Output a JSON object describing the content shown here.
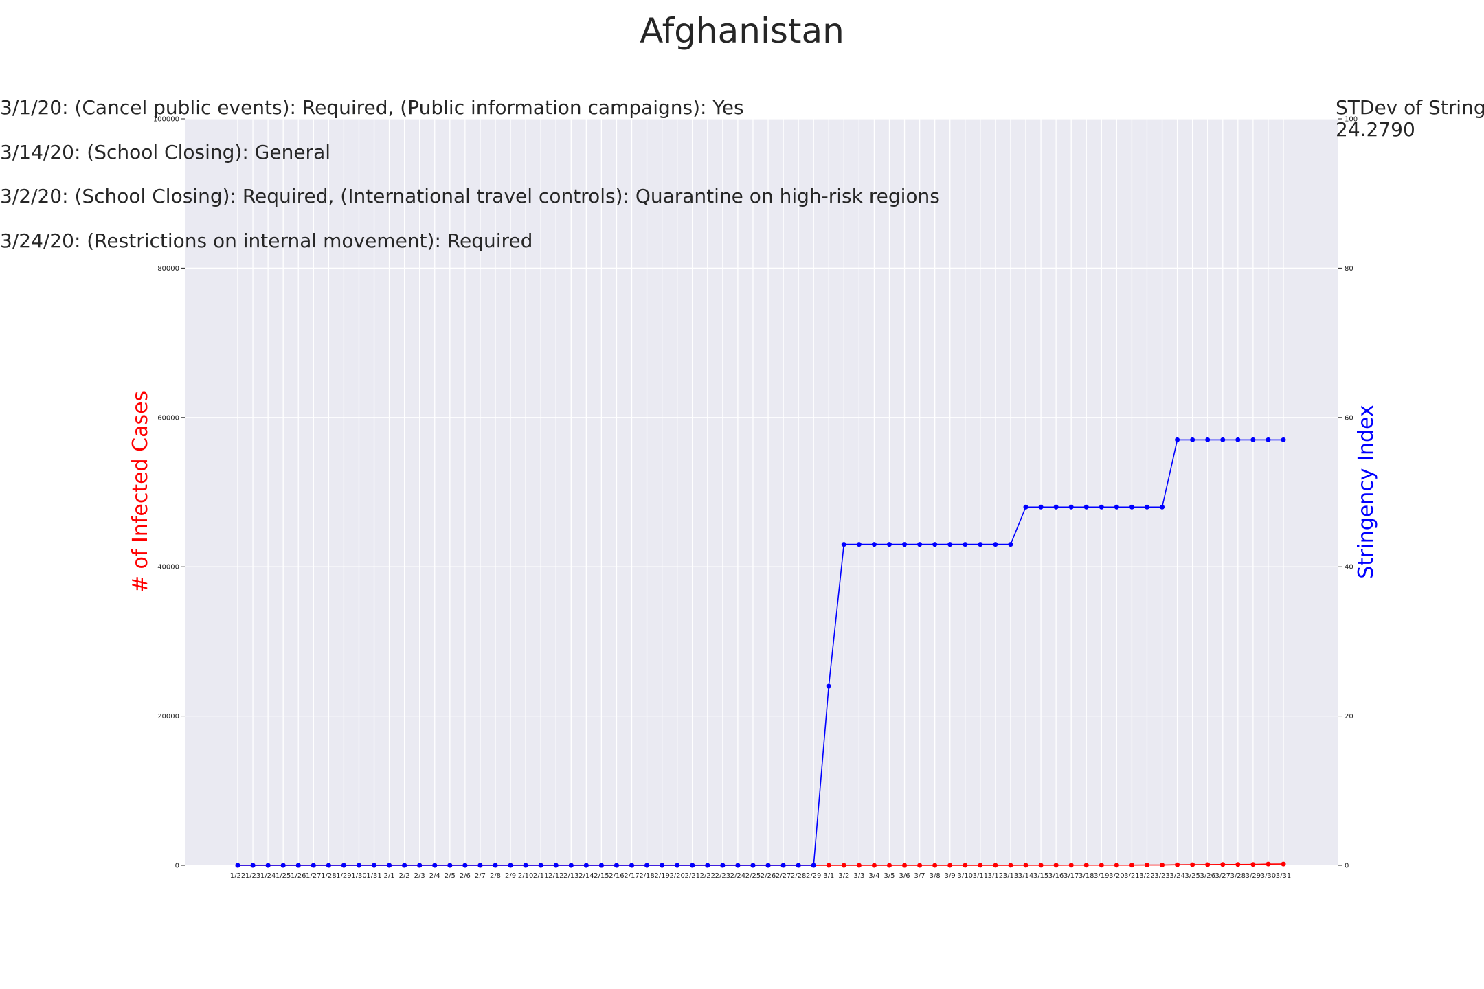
{
  "chart_data": {
    "type": "line",
    "title": "Afghanistan",
    "x": [
      "1/22",
      "1/23",
      "1/24",
      "1/25",
      "1/26",
      "1/27",
      "1/28",
      "1/29",
      "1/30",
      "1/31",
      "2/1",
      "2/2",
      "2/3",
      "2/4",
      "2/5",
      "2/6",
      "2/7",
      "2/8",
      "2/9",
      "2/10",
      "2/11",
      "2/12",
      "2/13",
      "2/14",
      "2/15",
      "2/16",
      "2/17",
      "2/18",
      "2/19",
      "2/20",
      "2/21",
      "2/22",
      "2/23",
      "2/24",
      "2/25",
      "2/26",
      "2/27",
      "2/28",
      "2/29",
      "3/1",
      "3/2",
      "3/3",
      "3/4",
      "3/5",
      "3/6",
      "3/7",
      "3/8",
      "3/9",
      "3/10",
      "3/11",
      "3/12",
      "3/13",
      "3/14",
      "3/15",
      "3/16",
      "3/17",
      "3/18",
      "3/19",
      "3/20",
      "3/21",
      "3/22",
      "3/23",
      "3/24",
      "3/25",
      "3/26",
      "3/27",
      "3/28",
      "3/29",
      "3/30",
      "3/31"
    ],
    "y_left": {
      "label": "# of Infected Cases",
      "color": "#ff0000",
      "ylim": [
        0,
        100000
      ],
      "ticks": [
        0,
        20000,
        40000,
        60000,
        80000,
        100000
      ]
    },
    "y_right": {
      "label": "Stringency Index",
      "color": "#0000ff",
      "ylim": [
        0,
        100
      ],
      "ticks": [
        0,
        20,
        40,
        60,
        80,
        100
      ]
    },
    "series": [
      {
        "axis": "left",
        "color": "#ff0000",
        "values": [
          0,
          0,
          0,
          0,
          0,
          0,
          0,
          0,
          0,
          0,
          0,
          0,
          0,
          0,
          0,
          0,
          0,
          0,
          0,
          0,
          0,
          0,
          0,
          0,
          0,
          1,
          1,
          1,
          1,
          1,
          1,
          1,
          1,
          1,
          1,
          1,
          1,
          1,
          1,
          1,
          1,
          1,
          1,
          1,
          1,
          1,
          4,
          4,
          5,
          7,
          7,
          7,
          11,
          16,
          21,
          22,
          22,
          22,
          24,
          24,
          40,
          40,
          74,
          84,
          94,
          110,
          110,
          120,
          170,
          174
        ]
      },
      {
        "axis": "right",
        "color": "#0000ff",
        "values": [
          0,
          0,
          0,
          0,
          0,
          0,
          0,
          0,
          0,
          0,
          0,
          0,
          0,
          0,
          0,
          0,
          0,
          0,
          0,
          0,
          0,
          0,
          0,
          0,
          0,
          0,
          0,
          0,
          0,
          0,
          0,
          0,
          0,
          0,
          0,
          0,
          0,
          0,
          0,
          24,
          43,
          43,
          43,
          43,
          43,
          43,
          43,
          43,
          43,
          43,
          43,
          43,
          48,
          48,
          48,
          48,
          48,
          48,
          48,
          48,
          48,
          48,
          57,
          57,
          57,
          57,
          57,
          57,
          57,
          57
        ]
      }
    ],
    "annotations": [
      "3/1/20: (Cancel public events): Required, (Public information campaigns): Yes",
      "3/14/20: (School Closing): General",
      "3/2/20: (School Closing): Required, (International travel controls): Quarantine on high-risk regions",
      "3/24/20: (Restrictions on internal movement): Required"
    ],
    "side_note": [
      "STDev of Stringe",
      "24.2790"
    ],
    "grid": true
  }
}
